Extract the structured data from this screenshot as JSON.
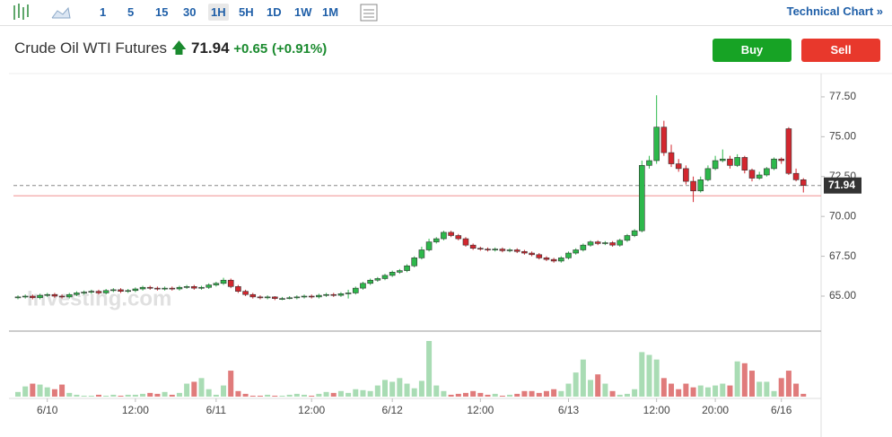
{
  "toolbar": {
    "intervals": [
      "1",
      "5",
      "15",
      "30",
      "1H",
      "5H",
      "1D",
      "1W",
      "1M"
    ],
    "selected": "1H",
    "link": "Technical Chart »"
  },
  "header": {
    "title": "Crude Oil WTI Futures",
    "change": "+0.65",
    "change_pct": "(+0.91%)"
  },
  "buttons": {
    "buy": "Buy",
    "sell": "Sell"
  },
  "chart_data": {
    "type": "candlestick",
    "watermark": "Investing.com",
    "last": 71.94,
    "last_label": "71.94",
    "prev_close": 71.29,
    "ylim": [
      63.03,
      78.96
    ],
    "yticks": [
      {
        "value": 65,
        "label": "65.00"
      },
      {
        "value": 67.5,
        "label": "67.50"
      },
      {
        "value": 70,
        "label": "70.00"
      },
      {
        "value": 72.5,
        "label": "72.50"
      },
      {
        "value": 75,
        "label": "75.00"
      },
      {
        "value": 77.5,
        "label": "77.50"
      }
    ],
    "xticks": [
      {
        "value": 4,
        "label": "6/10"
      },
      {
        "value": 16,
        "label": "12:00"
      },
      {
        "value": 27,
        "label": "6/11"
      },
      {
        "value": 40,
        "label": "12:00"
      },
      {
        "value": 51,
        "label": "6/12"
      },
      {
        "value": 63,
        "label": "12:00"
      },
      {
        "value": 75,
        "label": "6/13"
      },
      {
        "value": 87,
        "label": "12:00"
      },
      {
        "value": 95,
        "label": "20:00"
      },
      {
        "value": 104,
        "label": "6/16"
      }
    ],
    "up_color": "#2db84b",
    "down_color": "#d3272f",
    "ohlc": [
      [
        64.9,
        65.05,
        64.8,
        64.95
      ],
      [
        64.95,
        65.1,
        64.85,
        65.0
      ],
      [
        65.0,
        65.1,
        64.8,
        64.9
      ],
      [
        64.9,
        65.15,
        64.8,
        65.05
      ],
      [
        65.05,
        65.2,
        64.95,
        65.1
      ],
      [
        65.1,
        65.2,
        64.9,
        65.0
      ],
      [
        65.0,
        65.1,
        64.85,
        64.95
      ],
      [
        64.95,
        65.2,
        64.85,
        65.1
      ],
      [
        65.1,
        65.3,
        65.0,
        65.2
      ],
      [
        65.2,
        65.35,
        65.1,
        65.25
      ],
      [
        65.25,
        65.4,
        65.15,
        65.3
      ],
      [
        65.3,
        65.4,
        65.1,
        65.2
      ],
      [
        65.2,
        65.45,
        65.1,
        65.35
      ],
      [
        65.35,
        65.5,
        65.25,
        65.4
      ],
      [
        65.4,
        65.5,
        65.2,
        65.3
      ],
      [
        65.3,
        65.45,
        65.2,
        65.35
      ],
      [
        65.35,
        65.55,
        65.25,
        65.45
      ],
      [
        65.45,
        65.65,
        65.35,
        65.55
      ],
      [
        65.55,
        65.65,
        65.4,
        65.5
      ],
      [
        65.5,
        65.6,
        65.35,
        65.45
      ],
      [
        65.45,
        65.6,
        65.35,
        65.5
      ],
      [
        65.5,
        65.6,
        65.35,
        65.45
      ],
      [
        65.45,
        65.65,
        65.35,
        65.55
      ],
      [
        65.55,
        65.7,
        65.45,
        65.6
      ],
      [
        65.6,
        65.7,
        65.4,
        65.5
      ],
      [
        65.5,
        65.65,
        65.4,
        65.55
      ],
      [
        65.55,
        65.8,
        65.45,
        65.7
      ],
      [
        65.7,
        65.9,
        65.6,
        65.8
      ],
      [
        65.8,
        66.15,
        65.7,
        66.0
      ],
      [
        66.0,
        66.1,
        65.5,
        65.6
      ],
      [
        65.6,
        65.7,
        65.2,
        65.3
      ],
      [
        65.3,
        65.4,
        65.0,
        65.1
      ],
      [
        65.1,
        65.2,
        64.85,
        64.95
      ],
      [
        64.95,
        65.05,
        64.8,
        64.9
      ],
      [
        64.9,
        65.05,
        64.8,
        64.95
      ],
      [
        64.95,
        65.0,
        64.75,
        64.85
      ],
      [
        64.85,
        64.95,
        64.75,
        64.85
      ],
      [
        64.85,
        65.0,
        64.8,
        64.9
      ],
      [
        64.9,
        65.05,
        64.8,
        64.95
      ],
      [
        64.95,
        65.1,
        64.85,
        65.0
      ],
      [
        65.0,
        65.1,
        64.85,
        64.95
      ],
      [
        64.95,
        65.15,
        64.85,
        65.05
      ],
      [
        65.05,
        65.2,
        64.95,
        65.1
      ],
      [
        65.1,
        65.2,
        64.95,
        65.05
      ],
      [
        65.05,
        65.25,
        64.95,
        65.15
      ],
      [
        65.15,
        65.4,
        64.85,
        65.2
      ],
      [
        65.2,
        65.6,
        65.1,
        65.5
      ],
      [
        65.5,
        65.9,
        65.4,
        65.8
      ],
      [
        65.8,
        66.1,
        65.7,
        66.0
      ],
      [
        66.0,
        66.2,
        65.9,
        66.1
      ],
      [
        66.1,
        66.4,
        66.0,
        66.3
      ],
      [
        66.3,
        66.6,
        66.2,
        66.5
      ],
      [
        66.5,
        66.7,
        66.4,
        66.6
      ],
      [
        66.6,
        67.0,
        66.5,
        66.9
      ],
      [
        66.9,
        67.5,
        66.8,
        67.4
      ],
      [
        67.4,
        68.1,
        67.3,
        67.9
      ],
      [
        67.9,
        68.6,
        67.8,
        68.4
      ],
      [
        68.4,
        68.7,
        68.3,
        68.6
      ],
      [
        68.6,
        69.1,
        68.5,
        69.0
      ],
      [
        69.0,
        69.1,
        68.7,
        68.8
      ],
      [
        68.8,
        68.9,
        68.5,
        68.6
      ],
      [
        68.6,
        68.7,
        68.1,
        68.2
      ],
      [
        68.2,
        68.3,
        67.9,
        68.0
      ],
      [
        68.0,
        68.1,
        67.85,
        67.95
      ],
      [
        67.95,
        68.05,
        67.8,
        67.9
      ],
      [
        67.9,
        68.05,
        67.8,
        67.95
      ],
      [
        67.95,
        68.05,
        67.75,
        67.85
      ],
      [
        67.85,
        68.0,
        67.75,
        67.9
      ],
      [
        67.9,
        68.0,
        67.7,
        67.8
      ],
      [
        67.8,
        67.9,
        67.6,
        67.7
      ],
      [
        67.7,
        67.8,
        67.5,
        67.6
      ],
      [
        67.6,
        67.7,
        67.3,
        67.4
      ],
      [
        67.4,
        67.5,
        67.2,
        67.3
      ],
      [
        67.3,
        67.4,
        67.1,
        67.2
      ],
      [
        67.2,
        67.5,
        67.1,
        67.4
      ],
      [
        67.4,
        67.8,
        67.3,
        67.7
      ],
      [
        67.7,
        68.0,
        67.6,
        67.9
      ],
      [
        67.9,
        68.3,
        67.8,
        68.2
      ],
      [
        68.2,
        68.5,
        68.1,
        68.4
      ],
      [
        68.4,
        68.5,
        68.2,
        68.3
      ],
      [
        68.3,
        68.45,
        68.2,
        68.35
      ],
      [
        68.35,
        68.45,
        68.1,
        68.2
      ],
      [
        68.2,
        68.6,
        68.1,
        68.5
      ],
      [
        68.5,
        68.9,
        68.4,
        68.8
      ],
      [
        68.8,
        69.2,
        68.7,
        69.1
      ],
      [
        69.1,
        73.5,
        69.0,
        73.2
      ],
      [
        73.2,
        73.8,
        73.0,
        73.5
      ],
      [
        73.5,
        77.6,
        73.3,
        75.6
      ],
      [
        75.6,
        76.0,
        73.8,
        74.0
      ],
      [
        74.0,
        74.5,
        73.1,
        73.3
      ],
      [
        73.3,
        73.6,
        72.8,
        73.0
      ],
      [
        73.0,
        73.2,
        72.0,
        72.2
      ],
      [
        72.2,
        72.5,
        70.9,
        71.6
      ],
      [
        71.6,
        72.5,
        71.5,
        72.3
      ],
      [
        72.3,
        73.2,
        72.2,
        73.0
      ],
      [
        73.0,
        73.8,
        72.9,
        73.5
      ],
      [
        73.5,
        74.2,
        73.4,
        73.6
      ],
      [
        73.6,
        73.8,
        73.0,
        73.2
      ],
      [
        73.2,
        73.9,
        73.1,
        73.7
      ],
      [
        73.7,
        73.8,
        72.7,
        72.9
      ],
      [
        72.9,
        73.0,
        72.2,
        72.4
      ],
      [
        72.4,
        72.8,
        72.3,
        72.6
      ],
      [
        72.6,
        73.1,
        72.5,
        73.0
      ],
      [
        73.0,
        73.7,
        72.9,
        73.6
      ],
      [
        73.6,
        73.7,
        73.3,
        73.5
      ],
      [
        75.5,
        75.6,
        72.6,
        72.7
      ],
      [
        72.7,
        73.0,
        72.2,
        72.3
      ],
      [
        72.3,
        72.4,
        71.5,
        71.94
      ]
    ],
    "volume": [
      5,
      11,
      14,
      13,
      10,
      8,
      13,
      4,
      2,
      1,
      1,
      2,
      1,
      2,
      1,
      2,
      2,
      3,
      4,
      3,
      5,
      2,
      4,
      14,
      16,
      20,
      8,
      2,
      12,
      28,
      6,
      3,
      1,
      1,
      2,
      1,
      1,
      2,
      3,
      2,
      1,
      3,
      5,
      4,
      6,
      4,
      8,
      7,
      6,
      12,
      18,
      16,
      20,
      14,
      9,
      17,
      60,
      12,
      6,
      2,
      3,
      4,
      6,
      4,
      2,
      3,
      1,
      2,
      3,
      6,
      6,
      4,
      6,
      8,
      6,
      14,
      26,
      40,
      18,
      24,
      14,
      6,
      2,
      3,
      8,
      48,
      45,
      40,
      20,
      14,
      8,
      14,
      10,
      12,
      10,
      12,
      14,
      12,
      38,
      36,
      28,
      16,
      16,
      6,
      20,
      28,
      14,
      3
    ]
  }
}
